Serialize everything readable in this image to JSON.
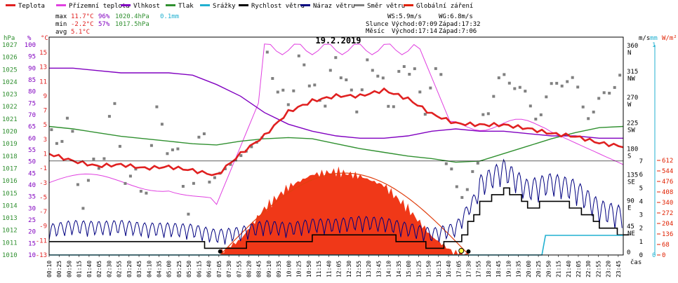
{
  "chart_data": {
    "type": "line",
    "title": "19.2.2019",
    "legend": [
      {
        "label": "Teplota",
        "color": "#e02020"
      },
      {
        "label": "Přízemní teplota",
        "color": "#e040e0"
      },
      {
        "label": "Vlhkost",
        "color": "#8000c0"
      },
      {
        "label": "Tlak",
        "color": "#309030"
      },
      {
        "label": "Srážky",
        "color": "#20b0d0"
      },
      {
        "label": "Rychlost větru",
        "color": "#000000"
      },
      {
        "label": "Náraz větru",
        "color": "#000080"
      },
      {
        "label": "Směr větru",
        "color": "#808080"
      },
      {
        "label": "Globální záření",
        "color": "#e02000"
      }
    ],
    "stats": {
      "max": {
        "label": "max",
        "temp": "11.7°C",
        "hum": "96%",
        "press": "1020.4hPa",
        "rain": "0.1mm"
      },
      "min": {
        "label": "min",
        "temp": "-2.2°C",
        "hum": "57%",
        "press": "1017.5hPa"
      },
      "avg": {
        "label": "avg",
        "temp": "5.1°C"
      }
    },
    "wind": {
      "ws": "WS:5.9m/s",
      "wg": "WG:6.8m/s"
    },
    "sun": {
      "row": "Slunce",
      "rise": "Východ:07:09",
      "set": "Západ:17:32"
    },
    "moon": {
      "row": "Měsíc",
      "rise": "Východ:17:14",
      "set": "Západ:7:06"
    },
    "axes": {
      "hpa_unit": "hPa",
      "pct_unit": "%",
      "temp_unit": "°C",
      "hpa_ticks": [
        "1027",
        "1026",
        "1025",
        "1024",
        "1023",
        "1022",
        "1021",
        "1020",
        "1019",
        "1018",
        "1017",
        "1016",
        "1015",
        "1014",
        "1013",
        "1012",
        "1011",
        "1010"
      ],
      "pct_ticks": [
        "100",
        "95",
        "90",
        "85",
        "80",
        "75",
        "70",
        "65",
        "60",
        "55",
        "50",
        "45",
        "40",
        "35",
        "30",
        "25",
        "20",
        "15",
        "10"
      ],
      "temp_ticks": [
        "15",
        "13",
        "11",
        "9",
        "7",
        "5",
        "3",
        "1",
        "-1",
        "-3",
        "-5",
        "-7",
        "-9",
        "-11",
        "-13"
      ],
      "dir_ticks": [
        {
          "deg": "360",
          "lab": "N",
          "v": 360
        },
        {
          "deg": "315",
          "lab": "NW",
          "v": 315
        },
        {
          "deg": "270",
          "lab": "W",
          "v": 270
        },
        {
          "deg": "225",
          "lab": "SW",
          "v": 225
        },
        {
          "deg": "180",
          "lab": "S",
          "v": 180
        },
        {
          "deg": "135",
          "lab": "SE",
          "v": 135
        },
        {
          "deg": "90",
          "lab": "E",
          "v": 90
        },
        {
          "deg": "45",
          "lab": "NE",
          "v": 45
        },
        {
          "deg": "0",
          "lab": "",
          "v": 0
        }
      ],
      "ms_unit": "m/s",
      "ms_ticks": [
        "7",
        "6",
        "5",
        "4",
        "3",
        "2",
        "1",
        "0"
      ],
      "mm_unit": "mm",
      "mm_top": "1",
      "mm_zero": "0",
      "wm_unit": "W/m²",
      "wm_ticks": [
        "612",
        "544",
        "476",
        "408",
        "340",
        "272",
        "204",
        "136",
        "68",
        "0"
      ],
      "x_unit": "čas",
      "x_ticks": [
        "00:10",
        "00:25",
        "00:50",
        "01:15",
        "01:40",
        "02:05",
        "02:30",
        "02:55",
        "03:20",
        "03:45",
        "04:10",
        "04:35",
        "05:00",
        "05:25",
        "05:50",
        "06:15",
        "06:40",
        "07:05",
        "07:30",
        "07:55",
        "08:20",
        "08:45",
        "09:10",
        "09:35",
        "10:00",
        "10:25",
        "10:50",
        "11:15",
        "11:40",
        "12:05",
        "12:30",
        "12:55",
        "13:20",
        "13:45",
        "14:10",
        "14:35",
        "15:00",
        "15:25",
        "15:50",
        "16:15",
        "16:40",
        "17:05",
        "17:30",
        "17:55",
        "18:20",
        "18:45",
        "19:10",
        "19:35",
        "20:00",
        "20:25",
        "20:50",
        "21:15",
        "21:40",
        "22:05",
        "22:30",
        "22:55",
        "23:20",
        "23:45"
      ]
    },
    "series_hourly": {
      "hours": [
        0,
        1,
        2,
        3,
        4,
        5,
        6,
        7,
        8,
        9,
        10,
        11,
        12,
        13,
        14,
        15,
        16,
        17,
        18,
        19,
        20,
        21,
        22,
        23,
        24
      ],
      "temperature_c": [
        1.0,
        0.0,
        -0.7,
        -0.5,
        -1.0,
        -0.8,
        -1.3,
        -2.0,
        1.0,
        3.5,
        6.8,
        8.3,
        9.0,
        9.0,
        9.8,
        8.6,
        6.5,
        5.2,
        5.0,
        5.0,
        4.5,
        3.8,
        3.4,
        2.5,
        2.0
      ],
      "humidity_pct": [
        90,
        90,
        89,
        88,
        88,
        88,
        87,
        83,
        78,
        71,
        66,
        63,
        61,
        60,
        60,
        61,
        63,
        64,
        63,
        63,
        62,
        61,
        61,
        60,
        60
      ],
      "pressure_hpa": [
        1020.4,
        1020.2,
        1019.9,
        1019.6,
        1019.4,
        1019.2,
        1019.0,
        1018.9,
        1019.2,
        1019.4,
        1019.5,
        1019.4,
        1019.0,
        1018.6,
        1018.3,
        1018.0,
        1017.8,
        1017.5,
        1017.6,
        1018.2,
        1018.8,
        1019.4,
        1019.9,
        1020.3,
        1020.4
      ],
      "wind_speed_ms": [
        0.9,
        1.2,
        1.1,
        1.2,
        1.0,
        1.0,
        0.9,
        0.5,
        0.7,
        1.2,
        1.0,
        1.3,
        1.3,
        1.5,
        1.4,
        1.0,
        0.6,
        1.0,
        3.8,
        5.0,
        3.5,
        4.0,
        3.5,
        2.0,
        1.5
      ],
      "global_radiation_wm2": [
        0,
        0,
        0,
        0,
        0,
        0,
        0,
        0,
        100,
        300,
        440,
        520,
        540,
        510,
        450,
        300,
        120,
        5,
        0,
        0,
        0,
        0,
        0,
        0,
        0
      ]
    }
  }
}
